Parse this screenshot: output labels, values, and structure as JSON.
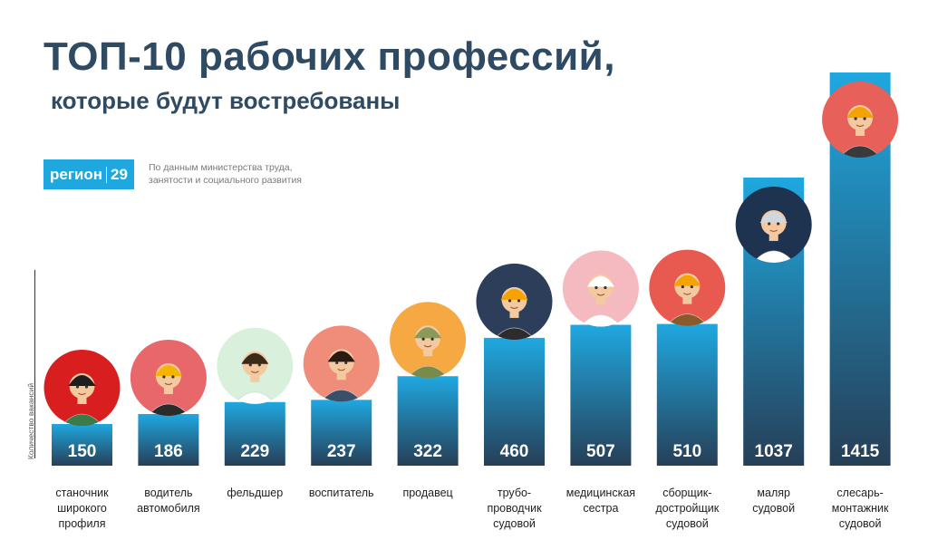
{
  "header": {
    "title": "ТОП-10 рабочих профессий,",
    "subtitle": "которые будут востребованы"
  },
  "logo": {
    "left": "регион",
    "right": "29"
  },
  "source_line1": "По данным министерства труда,",
  "source_line2": "занятости и социального развития",
  "colors": {
    "bar_top": "#1fa8e0",
    "bar_bottom": "#263f57",
    "title": "#2f4a63",
    "logo": "#1fa8e0"
  },
  "chart_data": {
    "type": "bar",
    "title": "ТОП-10 рабочих профессий, которые будут востребованы",
    "ylabel": "Количество вакансий",
    "categories": [
      "станочник широкого профиля",
      "водитель автомобиля",
      "фельдшер",
      "воспитатель",
      "продавец",
      "трубо-проводчик судовой",
      "медицинская сестра",
      "сборщик-достройщик судовой",
      "маляр судовой",
      "слесарь-монтажник судовой"
    ],
    "category_lines": [
      [
        "станочник",
        "широкого",
        "профиля"
      ],
      [
        "водитель",
        "автомобиля"
      ],
      [
        "фельдшер"
      ],
      [
        "воспитатель"
      ],
      [
        "продавец"
      ],
      [
        "трубо-",
        "проводчик",
        "судовой"
      ],
      [
        "медицинская",
        "сестра"
      ],
      [
        "сборщик-",
        "достройщик",
        "судовой"
      ],
      [
        "маляр",
        "судовой"
      ],
      [
        "слесарь-",
        "монтажник",
        "судовой"
      ]
    ],
    "values": [
      150,
      186,
      229,
      237,
      322,
      460,
      507,
      510,
      1037,
      1415
    ],
    "icons": [
      "machinist-icon",
      "driver-icon",
      "paramedic-icon",
      "teacher-icon",
      "seller-icon",
      "pipefitter-icon",
      "nurse-icon",
      "assembler-icon",
      "painter-icon",
      "fitter-icon"
    ],
    "icon_bg": [
      "#d81e1e",
      "#e8676a",
      "#d9f0dc",
      "#f08c7a",
      "#f6a942",
      "#2c3e5a",
      "#f5b9c0",
      "#e85a4f",
      "#1e3350",
      "#e8605a"
    ],
    "ylim": [
      0,
      1415
    ],
    "grid": false,
    "legend": "none"
  }
}
